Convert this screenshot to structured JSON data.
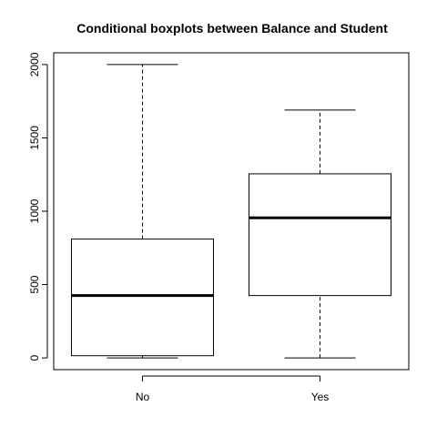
{
  "chart_data": {
    "type": "boxplot",
    "title": "Conditional boxplots between Balance and Student",
    "xlabel": "",
    "ylabel": "",
    "categories": [
      "No",
      "Yes"
    ],
    "boxes": [
      {
        "category": "No",
        "whisker_low": 0,
        "q1": 15,
        "median": 425,
        "q3": 810,
        "whisker_high": 2000
      },
      {
        "category": "Yes",
        "whisker_low": 0,
        "q1": 425,
        "median": 955,
        "q3": 1255,
        "whisker_high": 1690
      }
    ],
    "yticks": [
      0,
      500,
      1000,
      1500,
      2000
    ],
    "ylim": [
      -80,
      2080
    ],
    "grid": false,
    "legend": "none"
  }
}
